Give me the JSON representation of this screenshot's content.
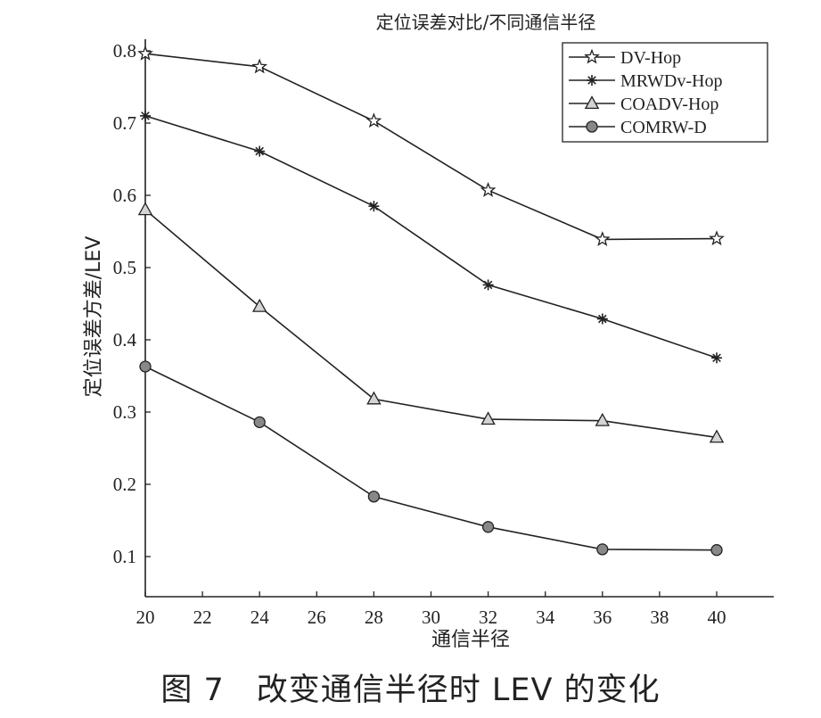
{
  "chart_data": {
    "type": "line",
    "title": "定位误差对比/不同通信半径",
    "xlabel": "通信半径",
    "ylabel": "定位误差方差/LEV",
    "xlim": [
      20,
      42
    ],
    "ylim": [
      0.07,
      0.82
    ],
    "xticks": [
      20,
      22,
      24,
      26,
      28,
      30,
      32,
      34,
      36,
      38,
      40
    ],
    "yticks": [
      0.1,
      0.2,
      0.3,
      0.4,
      0.5,
      0.6,
      0.7,
      0.8
    ],
    "x": [
      20,
      24,
      28,
      32,
      36,
      40
    ],
    "legend_position": "top-right",
    "grid": false,
    "series": [
      {
        "name": "DV-Hop",
        "marker": "star",
        "values": [
          0.796,
          0.778,
          0.703,
          0.607,
          0.539,
          0.54
        ]
      },
      {
        "name": "MRWDv-Hop",
        "marker": "asterisk",
        "values": [
          0.71,
          0.661,
          0.585,
          0.476,
          0.429,
          0.375
        ]
      },
      {
        "name": "COADV-Hop",
        "marker": "triangle",
        "values": [
          0.58,
          0.446,
          0.318,
          0.29,
          0.288,
          0.265
        ]
      },
      {
        "name": "COMRW-D",
        "marker": "circle",
        "values": [
          0.363,
          0.286,
          0.183,
          0.141,
          0.11,
          0.109
        ]
      }
    ]
  },
  "caption": "图 7　改变通信半径时 LEV 的变化"
}
